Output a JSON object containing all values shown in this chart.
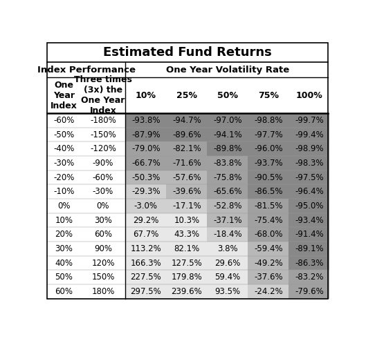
{
  "title": "Estimated Fund Returns",
  "col_header_left1": "Index Performance",
  "col_header_right1": "One Year Volatility Rate",
  "vol_rates": [
    "10%",
    "25%",
    "50%",
    "75%",
    "100%"
  ],
  "index_returns": [
    "-60%",
    "-50%",
    "-40%",
    "-30%",
    "-20%",
    "-10%",
    "0%",
    "10%",
    "20%",
    "30%",
    "40%",
    "50%",
    "60%"
  ],
  "three_x_returns": [
    "-180%",
    "-150%",
    "-120%",
    "-90%",
    "-60%",
    "-30%",
    "0%",
    "30%",
    "60%",
    "90%",
    "120%",
    "150%",
    "180%"
  ],
  "fund_returns": [
    [
      "-93.8%",
      "-94.7%",
      "-97.0%",
      "-98.8%",
      "-99.7%"
    ],
    [
      "-87.9%",
      "-89.6%",
      "-94.1%",
      "-97.7%",
      "-99.4%"
    ],
    [
      "-79.0%",
      "-82.1%",
      "-89.8%",
      "-96.0%",
      "-98.9%"
    ],
    [
      "-66.7%",
      "-71.6%",
      "-83.8%",
      "-93.7%",
      "-98.3%"
    ],
    [
      "-50.3%",
      "-57.6%",
      "-75.8%",
      "-90.5%",
      "-97.5%"
    ],
    [
      "-29.3%",
      "-39.6%",
      "-65.6%",
      "-86.5%",
      "-96.4%"
    ],
    [
      "-3.0%",
      "-17.1%",
      "-52.8%",
      "-81.5%",
      "-95.0%"
    ],
    [
      "29.2%",
      "10.3%",
      "-37.1%",
      "-75.4%",
      "-93.4%"
    ],
    [
      "67.7%",
      "43.3%",
      "-18.4%",
      "-68.0%",
      "-91.4%"
    ],
    [
      "113.2%",
      "82.1%",
      "3.8%",
      "-59.4%",
      "-89.1%"
    ],
    [
      "166.3%",
      "127.5%",
      "29.6%",
      "-49.2%",
      "-86.3%"
    ],
    [
      "227.5%",
      "179.8%",
      "59.4%",
      "-37.6%",
      "-83.2%"
    ],
    [
      "297.5%",
      "239.6%",
      "93.5%",
      "-24.2%",
      "-79.6%"
    ]
  ],
  "fund_returns_vals": [
    [
      -93.8,
      -94.7,
      -97.0,
      -98.8,
      -99.7
    ],
    [
      -87.9,
      -89.6,
      -94.1,
      -97.7,
      -99.4
    ],
    [
      -79.0,
      -82.1,
      -89.8,
      -96.0,
      -98.9
    ],
    [
      -66.7,
      -71.6,
      -83.8,
      -93.7,
      -98.3
    ],
    [
      -50.3,
      -57.6,
      -75.8,
      -90.5,
      -97.5
    ],
    [
      -29.3,
      -39.6,
      -65.6,
      -86.5,
      -96.4
    ],
    [
      -3.0,
      -17.1,
      -52.8,
      -81.5,
      -95.0
    ],
    [
      29.2,
      10.3,
      -37.1,
      -75.4,
      -93.4
    ],
    [
      67.7,
      43.3,
      -18.4,
      -68.0,
      -91.4
    ],
    [
      113.2,
      82.1,
      3.8,
      -59.4,
      -89.1
    ],
    [
      166.3,
      127.5,
      29.6,
      -49.2,
      -86.3
    ],
    [
      227.5,
      179.8,
      59.4,
      -37.6,
      -83.2
    ],
    [
      297.5,
      239.6,
      93.5,
      -24.2,
      -79.6
    ]
  ],
  "bg_color": "#ffffff",
  "title_fontsize": 13,
  "header_fontsize": 9,
  "cell_fontsize": 8.5
}
